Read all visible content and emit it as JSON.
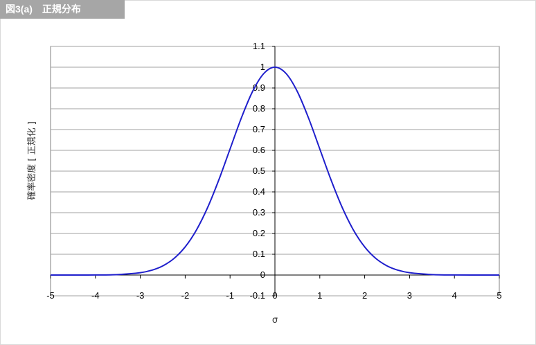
{
  "header": {
    "title": "図3(a)　正規分布"
  },
  "chart_data": {
    "type": "line",
    "title": "図3(a)　正規分布",
    "xlabel": "σ",
    "ylabel": "確率密度 [ 正規化 ]",
    "xlim": [
      -5,
      5
    ],
    "ylim": [
      -0.1,
      1.1
    ],
    "x_ticks": [
      "-5",
      "-4",
      "-3",
      "-2",
      "-1",
      "0",
      "1",
      "2",
      "3",
      "4",
      "5"
    ],
    "y_ticks": [
      "-0.1",
      "0",
      "0.1",
      "0.2",
      "0.3",
      "0.4",
      "0.5",
      "0.6",
      "0.7",
      "0.8",
      "0.9",
      "1",
      "1.1"
    ],
    "grid": true,
    "series": [
      {
        "x": [
          -5,
          -4.5,
          -4,
          -3.5,
          -3,
          -2.75,
          -2.5,
          -2.25,
          -2,
          -1.75,
          -1.5,
          -1.25,
          -1,
          -0.75,
          -0.5,
          -0.25,
          0,
          0.25,
          0.5,
          0.75,
          1,
          1.25,
          1.5,
          1.75,
          2,
          2.25,
          2.5,
          2.75,
          3,
          3.5,
          4,
          4.5,
          5
        ],
        "values": [
          0.0,
          0.0,
          0.0003,
          0.0022,
          0.0111,
          0.0228,
          0.0439,
          0.0796,
          0.1353,
          0.2163,
          0.3247,
          0.4578,
          0.6065,
          0.7548,
          0.8825,
          0.9692,
          1.0,
          0.9692,
          0.8825,
          0.7548,
          0.6065,
          0.4578,
          0.3247,
          0.2163,
          0.1353,
          0.0796,
          0.0439,
          0.0228,
          0.0111,
          0.0022,
          0.0003,
          0.0,
          0.0
        ],
        "color": "#1f1fcc"
      }
    ]
  }
}
